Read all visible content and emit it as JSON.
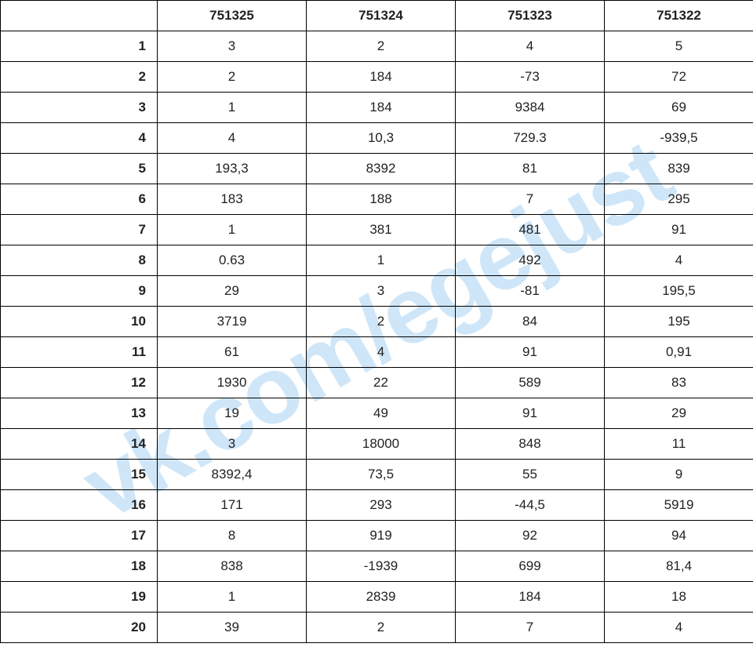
{
  "watermark": {
    "text": "vk.com/egejust",
    "color": "#a9d3f5",
    "fontsize_pt": 90
  },
  "table": {
    "type": "table",
    "background_color": "#ffffff",
    "border_color": "#000000",
    "header_font_weight": "bold",
    "row_label_font_weight": "bold",
    "cell_fontsize_pt": 13,
    "columns": [
      "751325",
      "751324",
      "751323",
      "751322"
    ],
    "row_labels": [
      "1",
      "2",
      "3",
      "4",
      "5",
      "6",
      "7",
      "8",
      "9",
      "10",
      "11",
      "12",
      "13",
      "14",
      "15",
      "16",
      "17",
      "18",
      "19",
      "20"
    ],
    "rows": [
      [
        "3",
        "2",
        "4",
        "5"
      ],
      [
        "2",
        "184",
        "-73",
        "72"
      ],
      [
        "1",
        "184",
        "9384",
        "69"
      ],
      [
        "4",
        "10,3",
        "729.3",
        "-939,5"
      ],
      [
        "193,3",
        "8392",
        "81",
        "839"
      ],
      [
        "183",
        "188",
        "7",
        "295"
      ],
      [
        "1",
        "381",
        "481",
        "91"
      ],
      [
        "0.63",
        "1",
        "492",
        "4"
      ],
      [
        "29",
        "3",
        "-81",
        "195,5"
      ],
      [
        "3719",
        "2",
        "84",
        "195"
      ],
      [
        "61",
        "4",
        "91",
        "0,91"
      ],
      [
        "1930",
        "22",
        "589",
        "83"
      ],
      [
        "19",
        "49",
        "91",
        "29"
      ],
      [
        "3",
        "18000",
        "848",
        "11"
      ],
      [
        "8392,4",
        "73,5",
        "55",
        "9"
      ],
      [
        "171",
        "293",
        "-44,5",
        "5919"
      ],
      [
        "8",
        "919",
        "92",
        "94"
      ],
      [
        "838",
        "-1939",
        "699",
        "81,4"
      ],
      [
        "1",
        "2839",
        "184",
        "18"
      ],
      [
        "39",
        "2",
        "7",
        "4"
      ]
    ]
  }
}
